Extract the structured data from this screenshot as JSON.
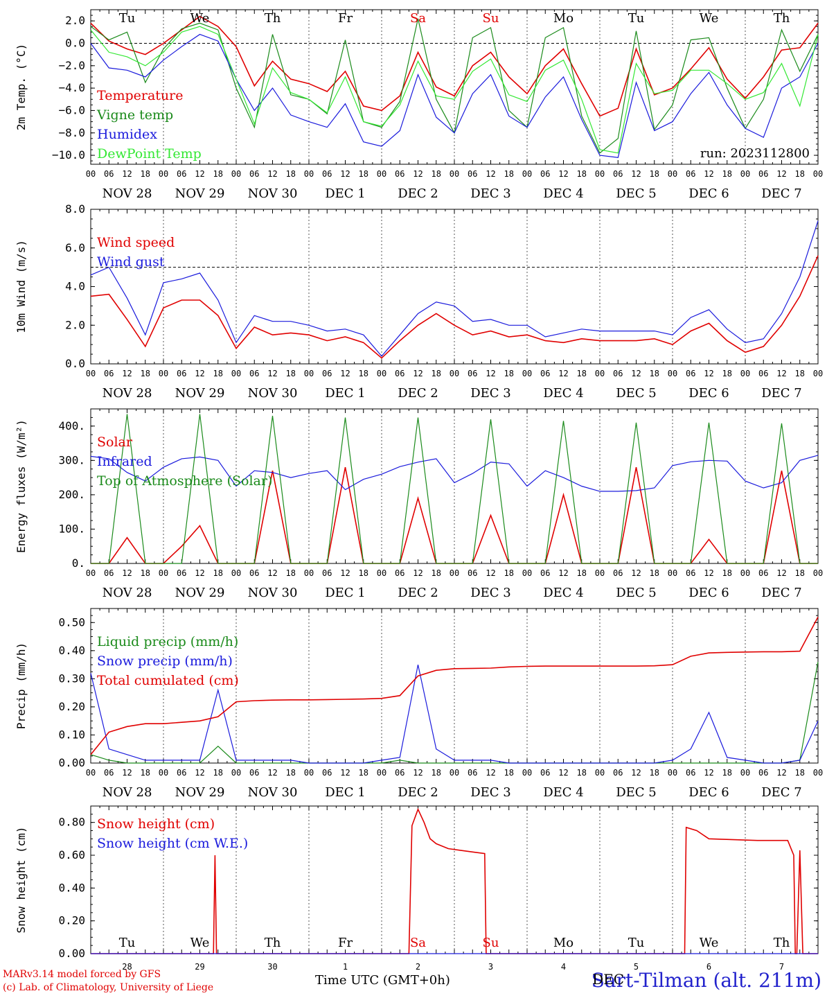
{
  "colors": {
    "red": "#e00000",
    "green": "#1a8a1a",
    "blue": "#1a1adc",
    "lightgreen": "#33e833",
    "axis": "#000000",
    "grid": "#555555",
    "weekend": "#e00000"
  },
  "x_axis": {
    "tick_hours": [
      "00",
      "06",
      "12",
      "18"
    ],
    "last_tick": "00",
    "dates": [
      "NOV 28",
      "NOV 29",
      "NOV 30",
      "DEC  1",
      "DEC  2",
      "DEC  3",
      "DEC  4",
      "DEC  5",
      "DEC  6",
      "DEC  7"
    ],
    "weekdays": [
      "Tu",
      "We",
      "Th",
      "Fr",
      "Sa",
      "Su",
      "Mo",
      "Tu",
      "We",
      "Th"
    ],
    "weekend_days": [
      4,
      5
    ],
    "day_numbers": [
      "28",
      "29",
      "30",
      "1",
      "2",
      "3",
      "4",
      "5",
      "6",
      "7"
    ],
    "title": "Time UTC (GMT+0h)"
  },
  "footer": {
    "credit_line1": "MARv3.14 model forced by GFS",
    "credit_line2": "(c) Lab. of Climatology, University of Liege",
    "station_prefix": "DEC",
    "station": "Sart-Tilman (alt. 211m)"
  },
  "chart_data": [
    {
      "type": "line",
      "ylabel": "2m Temp. (°C)",
      "ylim": [
        -10.8,
        3.0
      ],
      "yticks": [
        2.0,
        0.0,
        -2.0,
        -4.0,
        -6.0,
        -8.0,
        -10.0
      ],
      "ytick_labels": [
        "2.0",
        "0.0",
        "−2.0",
        "−4.0",
        "−6.0",
        "−8.0",
        "−10.0"
      ],
      "reference_line": 0,
      "annotation": "run: 2023112800",
      "x_hours": [
        0,
        6,
        12,
        18,
        24,
        30,
        36,
        42,
        48,
        54,
        60,
        66,
        72,
        78,
        84,
        90,
        96,
        102,
        108,
        114,
        120,
        126,
        132,
        138,
        144,
        150,
        156,
        162,
        168,
        174,
        180,
        186,
        192,
        198,
        204,
        210,
        216,
        222,
        228,
        234,
        240
      ],
      "series": [
        {
          "name": "Temperature",
          "color": "red",
          "values": [
            1.8,
            0.2,
            -0.5,
            -1.0,
            0.0,
            1.2,
            2.4,
            1.5,
            -0.3,
            -3.8,
            -1.6,
            -3.2,
            -3.6,
            -4.3,
            -2.5,
            -5.6,
            -6.0,
            -4.7,
            -0.8,
            -3.9,
            -4.7,
            -2.0,
            -0.8,
            -3.0,
            -4.5,
            -2.0,
            -0.5,
            -3.6,
            -6.5,
            -5.8,
            -0.5,
            -4.6,
            -4.0,
            -2.3,
            -0.4,
            -3.2,
            -4.9,
            -3.0,
            -0.6,
            -0.4,
            1.8
          ]
        },
        {
          "name": "Vigne temp",
          "color": "green",
          "values": [
            1.5,
            0.3,
            1.0,
            -3.5,
            -0.5,
            1.3,
            1.8,
            1.2,
            -4.0,
            -7.5,
            0.8,
            -4.6,
            -5.0,
            -6.3,
            0.3,
            -7.0,
            -7.5,
            -5.2,
            2.2,
            -5.0,
            -8.0,
            0.5,
            1.4,
            -6.0,
            -7.5,
            0.5,
            1.4,
            -6.5,
            -9.8,
            -8.5,
            1.1,
            -7.7,
            -5.5,
            0.3,
            0.5,
            -4.0,
            -7.6,
            -5.0,
            1.2,
            -2.5,
            0.8
          ]
        },
        {
          "name": "Humidex",
          "color": "blue",
          "values": [
            0.0,
            -2.2,
            -2.4,
            -3.0,
            -1.5,
            -0.3,
            0.8,
            0.2,
            -3.2,
            -6.0,
            -4.0,
            -6.4,
            -7.0,
            -7.5,
            -5.4,
            -8.8,
            -9.2,
            -7.8,
            -2.8,
            -6.6,
            -8.0,
            -4.5,
            -2.8,
            -6.5,
            -7.5,
            -4.8,
            -3.0,
            -6.8,
            -10.0,
            -10.2,
            -3.5,
            -7.8,
            -7.0,
            -4.5,
            -2.6,
            -5.5,
            -7.6,
            -8.4,
            -4.0,
            -3.0,
            0.0
          ]
        },
        {
          "name": "DewPoint Temp",
          "color": "lightgreen",
          "values": [
            1.2,
            -0.8,
            -1.2,
            -2.0,
            -0.8,
            1.0,
            1.5,
            0.8,
            -3.2,
            -7.2,
            -2.2,
            -4.4,
            -5.0,
            -6.2,
            -3.0,
            -7.0,
            -7.4,
            -5.5,
            -1.6,
            -4.7,
            -5.0,
            -2.5,
            -1.4,
            -4.6,
            -5.2,
            -2.4,
            -1.5,
            -5.0,
            -9.5,
            -9.8,
            -1.8,
            -4.5,
            -4.2,
            -2.4,
            -2.4,
            -3.6,
            -5.0,
            -4.4,
            -1.8,
            -5.6,
            0.8
          ]
        }
      ],
      "legend_position": "top-left"
    },
    {
      "type": "line",
      "ylabel": "10m Wind (m/s)",
      "ylim": [
        0,
        8.0
      ],
      "yticks": [
        0.0,
        2.0,
        4.0,
        6.0,
        8.0
      ],
      "ytick_labels": [
        "0.0",
        "2.0",
        "4.0",
        "6.0",
        "8.0"
      ],
      "reference_line": 5,
      "x_hours": [
        0,
        6,
        12,
        18,
        24,
        30,
        36,
        42,
        48,
        54,
        60,
        66,
        72,
        78,
        84,
        90,
        96,
        102,
        108,
        114,
        120,
        126,
        132,
        138,
        144,
        150,
        156,
        162,
        168,
        174,
        180,
        186,
        192,
        198,
        204,
        210,
        216,
        222,
        228,
        234,
        240
      ],
      "series": [
        {
          "name": "Wind speed",
          "color": "red",
          "values": [
            3.5,
            3.6,
            2.3,
            0.9,
            2.9,
            3.3,
            3.3,
            2.5,
            0.8,
            1.9,
            1.5,
            1.6,
            1.5,
            1.2,
            1.4,
            1.1,
            0.3,
            1.2,
            2.0,
            2.6,
            2.0,
            1.5,
            1.7,
            1.4,
            1.5,
            1.2,
            1.1,
            1.3,
            1.2,
            1.2,
            1.2,
            1.3,
            1.0,
            1.7,
            2.1,
            1.2,
            0.6,
            0.9,
            2.0,
            3.5,
            5.6
          ]
        },
        {
          "name": "Wind gust",
          "color": "blue",
          "values": [
            4.6,
            5.0,
            3.4,
            1.5,
            4.2,
            4.4,
            4.7,
            3.3,
            1.1,
            2.5,
            2.2,
            2.2,
            2.0,
            1.7,
            1.8,
            1.5,
            0.4,
            1.5,
            2.6,
            3.2,
            3.0,
            2.2,
            2.3,
            2.0,
            2.0,
            1.4,
            1.6,
            1.8,
            1.7,
            1.7,
            1.7,
            1.7,
            1.5,
            2.4,
            2.8,
            1.8,
            1.1,
            1.3,
            2.6,
            4.5,
            7.4
          ]
        }
      ],
      "legend_position": "top-left"
    },
    {
      "type": "line",
      "ylabel": "Energy fluxes (W/m²)",
      "ylim": [
        0,
        450
      ],
      "yticks": [
        0,
        100,
        200,
        300,
        400
      ],
      "ytick_labels": [
        "0.",
        "100.",
        "200.",
        "300.",
        "400."
      ],
      "x_hours": [
        0,
        6,
        12,
        18,
        24,
        30,
        36,
        42,
        48,
        54,
        60,
        66,
        72,
        78,
        84,
        90,
        96,
        102,
        108,
        114,
        120,
        126,
        132,
        138,
        144,
        150,
        156,
        162,
        168,
        174,
        180,
        186,
        192,
        198,
        204,
        210,
        216,
        222,
        228,
        234,
        240
      ],
      "series": [
        {
          "name": "Solar",
          "color": "red",
          "values": [
            0,
            0,
            75,
            0,
            0,
            50,
            110,
            0,
            0,
            0,
            270,
            0,
            0,
            0,
            280,
            0,
            0,
            0,
            190,
            0,
            0,
            0,
            140,
            0,
            0,
            0,
            200,
            0,
            0,
            0,
            280,
            0,
            0,
            0,
            70,
            0,
            0,
            0,
            270,
            0,
            0
          ]
        },
        {
          "name": "Infrared",
          "color": "blue",
          "values": [
            312,
            305,
            265,
            240,
            280,
            305,
            310,
            300,
            225,
            270,
            265,
            250,
            262,
            270,
            215,
            245,
            260,
            282,
            295,
            305,
            235,
            262,
            295,
            290,
            225,
            270,
            250,
            225,
            210,
            210,
            212,
            220,
            285,
            296,
            300,
            298,
            240,
            220,
            235,
            300,
            315
          ]
        },
        {
          "name": "Top of Atmosphere (Solar)",
          "color": "green",
          "values": [
            0,
            0,
            435,
            0,
            0,
            0,
            435,
            0,
            0,
            0,
            430,
            0,
            0,
            0,
            425,
            0,
            0,
            0,
            425,
            0,
            0,
            0,
            420,
            0,
            0,
            0,
            415,
            0,
            0,
            0,
            410,
            0,
            0,
            0,
            410,
            0,
            0,
            0,
            408,
            0,
            0
          ]
        }
      ],
      "legend_position": "top-left"
    },
    {
      "type": "line",
      "ylabel": "Precip (mm/h)",
      "ylim": [
        0,
        0.55
      ],
      "yticks": [
        0.0,
        0.1,
        0.2,
        0.3,
        0.4,
        0.5
      ],
      "ytick_labels": [
        "0.00",
        "0.10",
        "0.20",
        "0.30",
        "0.40",
        "0.50"
      ],
      "x_hours": [
        0,
        6,
        12,
        18,
        24,
        30,
        36,
        42,
        48,
        54,
        60,
        66,
        72,
        78,
        84,
        90,
        96,
        102,
        108,
        114,
        120,
        126,
        132,
        138,
        144,
        150,
        156,
        162,
        168,
        174,
        180,
        186,
        192,
        198,
        204,
        210,
        216,
        222,
        228,
        234,
        240
      ],
      "series": [
        {
          "name": "Liquid precip (mm/h)",
          "color": "green",
          "values": [
            0.03,
            0.01,
            0,
            0,
            0,
            0,
            0,
            0.06,
            0,
            0,
            0,
            0,
            0,
            0,
            0,
            0,
            0,
            0.01,
            0,
            0,
            0,
            0,
            0,
            0,
            0,
            0,
            0,
            0,
            0,
            0,
            0,
            0,
            0,
            0,
            0,
            0,
            0,
            0,
            0,
            0.01,
            0.36
          ]
        },
        {
          "name": "Snow precip (mm/h)",
          "color": "blue",
          "values": [
            0.32,
            0.05,
            0.03,
            0.01,
            0.01,
            0.01,
            0.01,
            0.26,
            0.01,
            0.01,
            0.01,
            0.01,
            0,
            0,
            0,
            0,
            0.01,
            0.02,
            0.35,
            0.05,
            0.01,
            0.01,
            0.01,
            0,
            0,
            0,
            0,
            0,
            0,
            0,
            0,
            0,
            0.01,
            0.05,
            0.18,
            0.02,
            0.01,
            0,
            0,
            0.01,
            0.15
          ]
        },
        {
          "name": "Total cumulated (cm)",
          "color": "red",
          "values": [
            0.03,
            0.11,
            0.13,
            0.14,
            0.14,
            0.145,
            0.15,
            0.165,
            0.218,
            0.222,
            0.224,
            0.225,
            0.225,
            0.226,
            0.227,
            0.228,
            0.23,
            0.24,
            0.31,
            0.33,
            0.336,
            0.337,
            0.338,
            0.342,
            0.344,
            0.345,
            0.345,
            0.345,
            0.345,
            0.345,
            0.345,
            0.346,
            0.35,
            0.38,
            0.392,
            0.394,
            0.395,
            0.396,
            0.396,
            0.398,
            0.52
          ]
        }
      ],
      "legend_position": "top-left"
    },
    {
      "type": "line",
      "ylabel": "Snow height (cm)",
      "ylim": [
        0,
        0.9
      ],
      "yticks": [
        0.0,
        0.2,
        0.4,
        0.6,
        0.8
      ],
      "ytick_labels": [
        "0.00",
        "0.20",
        "0.40",
        "0.60",
        "0.80"
      ],
      "x_hours": [
        0,
        40.5,
        41,
        41.5,
        42,
        105,
        106,
        108,
        110,
        112,
        114,
        118,
        122,
        126,
        130,
        130.5,
        131,
        196,
        196.5,
        200,
        204,
        220,
        230,
        232,
        232.5,
        233,
        234,
        235,
        240
      ],
      "series": [
        {
          "name": "Snow height (cm)",
          "color": "red",
          "values": [
            0,
            0,
            0.6,
            0,
            0,
            0,
            0.78,
            0.88,
            0.8,
            0.7,
            0.67,
            0.64,
            0.63,
            0.62,
            0.61,
            0,
            0,
            0,
            0.77,
            0.75,
            0.7,
            0.69,
            0.69,
            0.6,
            0,
            0,
            0.63,
            0,
            0
          ]
        },
        {
          "name": "Snow height (cm W.E.)",
          "color": "blue",
          "values": [
            0,
            0,
            0,
            0,
            0,
            0,
            0,
            0,
            0,
            0,
            0,
            0,
            0,
            0,
            0,
            0,
            0,
            0,
            0,
            0,
            0,
            0,
            0,
            0,
            0,
            0,
            0,
            0,
            0
          ]
        }
      ],
      "legend_position": "top-left"
    }
  ]
}
